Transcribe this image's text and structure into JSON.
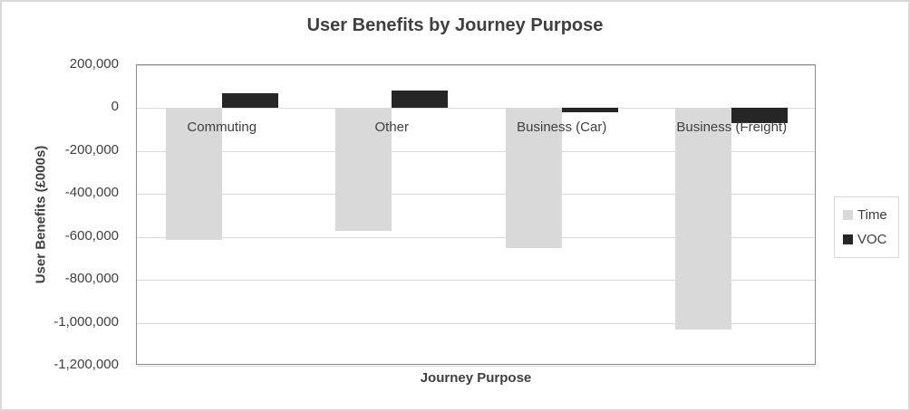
{
  "chart_data": {
    "type": "bar",
    "title": "User Benefits by Journey Purpose",
    "xlabel": "Journey Purpose",
    "ylabel": "User Benefits (£000s)",
    "categories": [
      "Commuting",
      "Other",
      "Business (Car)",
      "Business (Freight)"
    ],
    "series": [
      {
        "name": "Time",
        "color": "#d9d9d9",
        "values": [
          -615000,
          -570000,
          -650000,
          -1030000
        ]
      },
      {
        "name": "VOC",
        "color": "#262626",
        "values": [
          70000,
          80000,
          -20000,
          -70000
        ]
      }
    ],
    "ylim": [
      -1200000,
      200000
    ],
    "ytick_step": 200000,
    "yticks": [
      {
        "value": 200000,
        "label": "200,000"
      },
      {
        "value": 0,
        "label": "0"
      },
      {
        "value": -200000,
        "label": "-200,000"
      },
      {
        "value": -400000,
        "label": "-400,000"
      },
      {
        "value": -600000,
        "label": "-600,000"
      },
      {
        "value": -800000,
        "label": "-800,000"
      },
      {
        "value": -1000000,
        "label": "-1,000,000"
      },
      {
        "value": -1200000,
        "label": "-1,200,000"
      }
    ],
    "grid": true,
    "legend_position": "right",
    "colors": {
      "text": "#3f3f3f",
      "gridline": "#d9d9d9",
      "plot_border": "#8c8c8c",
      "legend_border": "#d9d9d9",
      "outer_border": "#d9d9d9",
      "background": "#ffffff"
    }
  }
}
